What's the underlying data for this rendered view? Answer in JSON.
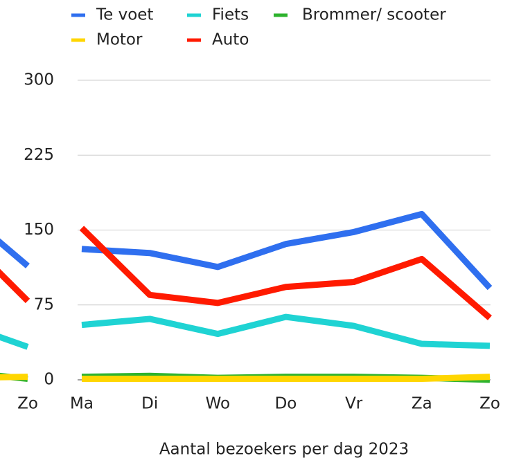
{
  "chart_data": [
    {
      "type": "line",
      "categories": [
        null,
        "Zo"
      ],
      "ylim": [
        0,
        300
      ],
      "series": [
        {
          "color": "#2f6fef",
          "values": [
            172,
            114
          ]
        },
        {
          "color": "#1fd3d3",
          "values": [
            57,
            33
          ]
        },
        {
          "color": "#2db32d",
          "values": [
            8,
            1
          ]
        },
        {
          "color": "#ffd600",
          "values": [
            2,
            3
          ]
        },
        {
          "color": "#ff1a00",
          "values": [
            147,
            79
          ]
        }
      ]
    },
    {
      "type": "line",
      "title": "Aantal bezoekers per dag 2023",
      "categories": [
        "Ma",
        "Di",
        "Wo",
        "Do",
        "Vr",
        "Za",
        "Zo"
      ],
      "ylim": [
        0,
        300
      ],
      "yticks": [
        0,
        75,
        150,
        225,
        300
      ],
      "grid": true,
      "series": [
        {
          "name": "Te voet",
          "color": "#2f6fef",
          "values": [
            131,
            127,
            113,
            136,
            148,
            166,
            92
          ]
        },
        {
          "name": "Fiets",
          "color": "#1fd3d3",
          "values": [
            55,
            61,
            46,
            63,
            54,
            36,
            34
          ]
        },
        {
          "name": "Brommer/ scooter",
          "color": "#2db32d",
          "values": [
            3,
            4,
            2,
            3,
            3,
            2,
            0
          ]
        },
        {
          "name": "Motor",
          "color": "#ffd600",
          "values": [
            1,
            1,
            1,
            1,
            1,
            1,
            3
          ]
        },
        {
          "name": "Auto",
          "color": "#ff1a00",
          "values": [
            152,
            85,
            77,
            93,
            98,
            121,
            62
          ]
        }
      ]
    }
  ]
}
